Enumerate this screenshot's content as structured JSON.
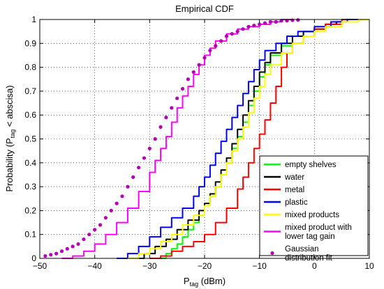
{
  "chart_data": {
    "type": "line",
    "title": "Empirical CDF",
    "xlabel": {
      "main": "P",
      "sub": "tag",
      "rest": " (dBm)"
    },
    "ylabel": {
      "pre": "Probability (P",
      "sub": "tag",
      "post": " < abscisa)"
    },
    "xlim": [
      -50,
      10
    ],
    "ylim": [
      0,
      1
    ],
    "xticks": [
      -50,
      -40,
      -30,
      -20,
      -10,
      0,
      10
    ],
    "xtick_labels": [
      "−50",
      "−40",
      "−30",
      "−20",
      "−10",
      "0",
      "10"
    ],
    "yticks": [
      0,
      0.1,
      0.2,
      0.3,
      0.4,
      0.5,
      0.6,
      0.7,
      0.8,
      0.9,
      1
    ],
    "ytick_labels": [
      "0",
      "0.1",
      "0.2",
      "0.3",
      "0.4",
      "0.5",
      "0.6",
      "0.7",
      "0.8",
      "0.9",
      "1"
    ],
    "grid": true,
    "legend_position": "bottom-right",
    "series": [
      {
        "name": "empty shelves",
        "color": "#00ff00",
        "style": "line",
        "points": [
          [
            -28,
            0
          ],
          [
            -27,
            0.02
          ],
          [
            -26,
            0.04
          ],
          [
            -25,
            0.06
          ],
          [
            -24,
            0.09
          ],
          [
            -23,
            0.12
          ],
          [
            -22,
            0.15
          ],
          [
            -21,
            0.18
          ],
          [
            -20,
            0.22
          ],
          [
            -19,
            0.26
          ],
          [
            -18,
            0.3
          ],
          [
            -17,
            0.35
          ],
          [
            -16,
            0.4
          ],
          [
            -15,
            0.46
          ],
          [
            -14,
            0.51
          ],
          [
            -13,
            0.57
          ],
          [
            -12,
            0.64
          ],
          [
            -11,
            0.7
          ],
          [
            -10,
            0.76
          ],
          [
            -9,
            0.81
          ],
          [
            -8,
            0.85
          ],
          [
            -6,
            0.89
          ],
          [
            -4,
            0.93
          ],
          [
            -2,
            0.95
          ],
          [
            0,
            0.96
          ],
          [
            2,
            0.98
          ],
          [
            4,
            0.99
          ],
          [
            6,
            1.0
          ],
          [
            10,
            1.0
          ]
        ]
      },
      {
        "name": "water",
        "color": "#000000",
        "style": "line",
        "points": [
          [
            -33,
            0
          ],
          [
            -31,
            0.02
          ],
          [
            -29,
            0.05
          ],
          [
            -27,
            0.08
          ],
          [
            -25,
            0.12
          ],
          [
            -23,
            0.16
          ],
          [
            -21,
            0.2
          ],
          [
            -20,
            0.23
          ],
          [
            -19,
            0.27
          ],
          [
            -18,
            0.32
          ],
          [
            -17,
            0.37
          ],
          [
            -16,
            0.42
          ],
          [
            -15,
            0.48
          ],
          [
            -14,
            0.54
          ],
          [
            -13,
            0.6
          ],
          [
            -12,
            0.66
          ],
          [
            -11,
            0.72
          ],
          [
            -10,
            0.78
          ],
          [
            -9,
            0.82
          ],
          [
            -8,
            0.86
          ],
          [
            -6,
            0.9
          ],
          [
            -4,
            0.93
          ],
          [
            -2,
            0.95
          ],
          [
            0,
            0.96
          ],
          [
            2,
            0.98
          ],
          [
            4,
            0.99
          ],
          [
            5,
            1.0
          ],
          [
            10,
            1.0
          ]
        ]
      },
      {
        "name": "metal",
        "color": "#ff0000",
        "style": "line",
        "points": [
          [
            -30,
            0
          ],
          [
            -28,
            0.01
          ],
          [
            -26,
            0.03
          ],
          [
            -24,
            0.05
          ],
          [
            -22,
            0.07
          ],
          [
            -20,
            0.1
          ],
          [
            -18,
            0.15
          ],
          [
            -16,
            0.21
          ],
          [
            -14,
            0.29
          ],
          [
            -13,
            0.34
          ],
          [
            -12,
            0.4
          ],
          [
            -11,
            0.46
          ],
          [
            -10,
            0.52
          ],
          [
            -9,
            0.58
          ],
          [
            -8,
            0.65
          ],
          [
            -7,
            0.72
          ],
          [
            -6,
            0.8
          ],
          [
            -5,
            0.86
          ],
          [
            -4,
            0.9
          ],
          [
            -2,
            0.93
          ],
          [
            0,
            0.96
          ],
          [
            2,
            0.98
          ],
          [
            5,
            1.0
          ],
          [
            10,
            1.0
          ]
        ]
      },
      {
        "name": "plastic",
        "color": "#0000ff",
        "style": "line",
        "points": [
          [
            -36,
            0
          ],
          [
            -34,
            0.02
          ],
          [
            -32,
            0.05
          ],
          [
            -30,
            0.09
          ],
          [
            -28,
            0.13
          ],
          [
            -26,
            0.17
          ],
          [
            -24,
            0.21
          ],
          [
            -22,
            0.26
          ],
          [
            -21,
            0.3
          ],
          [
            -20,
            0.34
          ],
          [
            -19,
            0.39
          ],
          [
            -18,
            0.44
          ],
          [
            -17,
            0.49
          ],
          [
            -16,
            0.54
          ],
          [
            -15,
            0.59
          ],
          [
            -14,
            0.64
          ],
          [
            -13,
            0.69
          ],
          [
            -12,
            0.74
          ],
          [
            -11,
            0.79
          ],
          [
            -10,
            0.83
          ],
          [
            -9,
            0.87
          ],
          [
            -7,
            0.9
          ],
          [
            -5,
            0.93
          ],
          [
            -3,
            0.95
          ],
          [
            0,
            0.97
          ],
          [
            3,
            0.99
          ],
          [
            6,
            1.0
          ],
          [
            10,
            1.0
          ]
        ]
      },
      {
        "name": "mixed products",
        "color": "#ffff00",
        "style": "line",
        "points": [
          [
            -34,
            0
          ],
          [
            -32,
            0.02
          ],
          [
            -30,
            0.04
          ],
          [
            -28,
            0.07
          ],
          [
            -26,
            0.1
          ],
          [
            -24,
            0.14
          ],
          [
            -22,
            0.18
          ],
          [
            -20,
            0.22
          ],
          [
            -19,
            0.26
          ],
          [
            -18,
            0.3
          ],
          [
            -17,
            0.35
          ],
          [
            -16,
            0.4
          ],
          [
            -15,
            0.45
          ],
          [
            -14,
            0.5
          ],
          [
            -13,
            0.55
          ],
          [
            -12,
            0.61
          ],
          [
            -11,
            0.67
          ],
          [
            -10,
            0.72
          ],
          [
            -9,
            0.77
          ],
          [
            -8,
            0.81
          ],
          [
            -6,
            0.86
          ],
          [
            -4,
            0.9
          ],
          [
            -2,
            0.93
          ],
          [
            0,
            0.95
          ],
          [
            2,
            0.97
          ],
          [
            5,
            0.99
          ],
          [
            8,
            1.0
          ],
          [
            10,
            1.0
          ]
        ]
      },
      {
        "name": "mixed product with lower tag gain",
        "color": "#ff00ff",
        "style": "line",
        "points": [
          [
            -46,
            0
          ],
          [
            -44,
            0.01
          ],
          [
            -42,
            0.03
          ],
          [
            -40,
            0.06
          ],
          [
            -38,
            0.1
          ],
          [
            -36,
            0.15
          ],
          [
            -34,
            0.21
          ],
          [
            -32,
            0.28
          ],
          [
            -30,
            0.36
          ],
          [
            -29,
            0.41
          ],
          [
            -28,
            0.46
          ],
          [
            -27,
            0.51
          ],
          [
            -26,
            0.57
          ],
          [
            -25,
            0.63
          ],
          [
            -24,
            0.68
          ],
          [
            -23,
            0.72
          ],
          [
            -22,
            0.77
          ],
          [
            -21,
            0.81
          ],
          [
            -20,
            0.85
          ],
          [
            -19,
            0.88
          ],
          [
            -18,
            0.91
          ],
          [
            -16,
            0.94
          ],
          [
            -14,
            0.96
          ],
          [
            -12,
            0.97
          ],
          [
            -10,
            0.98
          ],
          [
            -8,
            0.99
          ],
          [
            -6,
            1.0
          ],
          [
            -4,
            1.0
          ]
        ]
      },
      {
        "name": "Gaussian distribution fit",
        "color": "#b300b3",
        "style": "dots",
        "points": [
          [
            -49,
            0.01
          ],
          [
            -48,
            0.015
          ],
          [
            -47,
            0.02
          ],
          [
            -46,
            0.03
          ],
          [
            -45,
            0.04
          ],
          [
            -44,
            0.05
          ],
          [
            -43,
            0.06
          ],
          [
            -42,
            0.08
          ],
          [
            -41,
            0.1
          ],
          [
            -40,
            0.12
          ],
          [
            -39,
            0.14
          ],
          [
            -38,
            0.17
          ],
          [
            -37,
            0.2
          ],
          [
            -36,
            0.23
          ],
          [
            -35,
            0.26
          ],
          [
            -34,
            0.3
          ],
          [
            -33,
            0.34
          ],
          [
            -32,
            0.38
          ],
          [
            -31,
            0.42
          ],
          [
            -30,
            0.46
          ],
          [
            -29,
            0.5
          ],
          [
            -28,
            0.55
          ],
          [
            -27,
            0.59
          ],
          [
            -26,
            0.63
          ],
          [
            -25,
            0.67
          ],
          [
            -24,
            0.71
          ],
          [
            -23,
            0.75
          ],
          [
            -22,
            0.78
          ],
          [
            -21,
            0.81
          ],
          [
            -20,
            0.84
          ],
          [
            -19,
            0.87
          ],
          [
            -18,
            0.89
          ],
          [
            -17,
            0.91
          ],
          [
            -16,
            0.93
          ],
          [
            -15,
            0.94
          ],
          [
            -14,
            0.95
          ],
          [
            -13,
            0.96
          ],
          [
            -12,
            0.97
          ],
          [
            -11,
            0.975
          ],
          [
            -10,
            0.98
          ],
          [
            -9,
            0.985
          ],
          [
            -8,
            0.99
          ],
          [
            -7,
            0.99
          ],
          [
            -6,
            0.995
          ],
          [
            -5,
            0.995
          ],
          [
            -4,
            0.997
          ],
          [
            -3,
            0.998
          ]
        ]
      }
    ],
    "legend_entries": [
      {
        "lines": [
          "empty shelves"
        ],
        "color": "#00ff00",
        "style": "line"
      },
      {
        "lines": [
          "water"
        ],
        "color": "#000000",
        "style": "line"
      },
      {
        "lines": [
          "metal"
        ],
        "color": "#ff0000",
        "style": "line"
      },
      {
        "lines": [
          "plastic"
        ],
        "color": "#0000ff",
        "style": "line"
      },
      {
        "lines": [
          "mixed products"
        ],
        "color": "#ffff00",
        "style": "line"
      },
      {
        "lines": [
          "mixed product with",
          "lower tag gain"
        ],
        "color": "#ff00ff",
        "style": "line"
      },
      {
        "lines": [
          "Gaussian",
          "distribution fit"
        ],
        "color": "#b300b3",
        "style": "dots"
      }
    ]
  }
}
